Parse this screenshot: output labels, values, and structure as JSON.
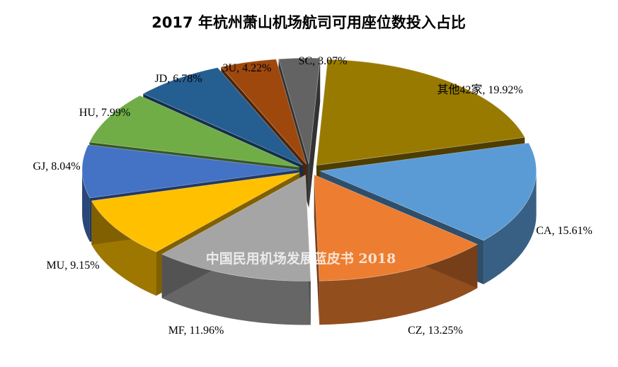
{
  "chart_data": {
    "type": "pie",
    "title": "2017 年杭州萧山机场航司可用座位数投入占比",
    "watermark": "中国民用机场发展蓝皮书 2018",
    "slices": [
      {
        "label": "其他42家, 19.92%",
        "value": 19.92,
        "color": "#997A00"
      },
      {
        "label": "CA, 15.61%",
        "value": 15.61,
        "color": "#5B9BD5"
      },
      {
        "label": "CZ, 13.25%",
        "value": 13.25,
        "color": "#ED7D31"
      },
      {
        "label": "MF, 11.96%",
        "value": 11.96,
        "color": "#A5A5A5"
      },
      {
        "label": "MU, 9.15%",
        "value": 9.15,
        "color": "#FFC000"
      },
      {
        "label": "GJ, 8.04%",
        "value": 8.04,
        "color": "#4472C4"
      },
      {
        "label": "HU, 7.99%",
        "value": 7.99,
        "color": "#70AD47"
      },
      {
        "label": "JD, 6.78%",
        "value": 6.78,
        "color": "#255E91"
      },
      {
        "label": "3U, 4.22%",
        "value": 4.22,
        "color": "#9E480E"
      },
      {
        "label": "SC, 3.07%",
        "value": 3.07,
        "color": "#636363"
      }
    ]
  }
}
